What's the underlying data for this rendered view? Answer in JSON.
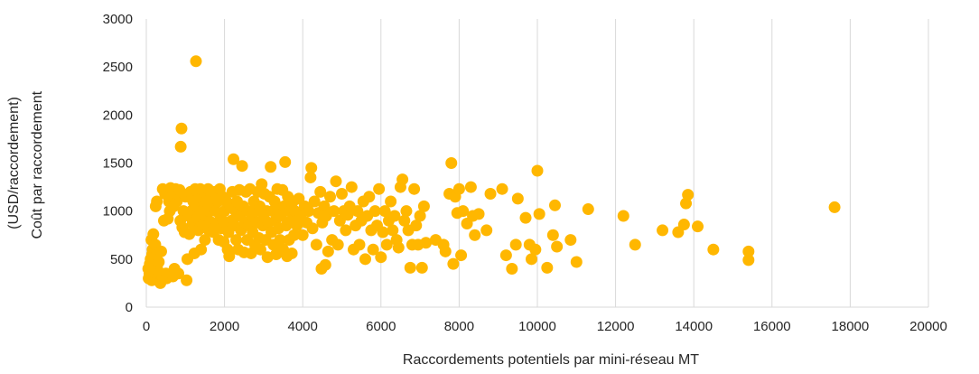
{
  "chart_data": {
    "type": "scatter",
    "title": "",
    "xlabel": "Raccordements potentiels par mini-réseau MT",
    "ylabel_line1": "Coût par raccordement",
    "ylabel_line2": "(USD/raccordement)",
    "xlim": [
      0,
      20000
    ],
    "ylim": [
      0,
      3000
    ],
    "x_ticks": [
      0,
      2000,
      4000,
      6000,
      8000,
      10000,
      12000,
      14000,
      16000,
      18000,
      20000
    ],
    "x_tick_labels": [
      "0",
      "2000",
      "4000",
      "6000",
      "8000",
      "10000",
      "12000",
      "14000",
      "16000",
      "18000",
      "20000"
    ],
    "y_ticks": [
      0,
      500,
      1000,
      1500,
      2000,
      2500,
      3000
    ],
    "y_tick_labels": [
      "0",
      "500",
      "1000",
      "1500",
      "2000",
      "2500",
      "3000"
    ],
    "grid": "vertical",
    "legend": "none",
    "marker_color": "#FFB700",
    "series": [
      {
        "points": [
          [
            50,
            400
          ],
          [
            60,
            300
          ],
          [
            80,
            350
          ],
          [
            90,
            450
          ],
          [
            100,
            380
          ],
          [
            110,
            500
          ],
          [
            120,
            320
          ],
          [
            130,
            700
          ],
          [
            140,
            280
          ],
          [
            150,
            550
          ],
          [
            160,
            600
          ],
          [
            170,
            420
          ],
          [
            180,
            760
          ],
          [
            190,
            330
          ],
          [
            200,
            480
          ],
          [
            220,
            360
          ],
          [
            230,
            650
          ],
          [
            240,
            1050
          ],
          [
            250,
            290
          ],
          [
            260,
            540
          ],
          [
            270,
            1100
          ],
          [
            280,
            400
          ],
          [
            300,
            310
          ],
          [
            320,
            470
          ],
          [
            340,
            350
          ],
          [
            360,
            250
          ],
          [
            380,
            580
          ],
          [
            400,
            330
          ],
          [
            420,
            1230
          ],
          [
            450,
            900
          ],
          [
            480,
            1180
          ],
          [
            500,
            350
          ],
          [
            520,
            300
          ],
          [
            550,
            920
          ],
          [
            580,
            1100
          ],
          [
            600,
            1000
          ],
          [
            620,
            1240
          ],
          [
            650,
            1150
          ],
          [
            680,
            320
          ],
          [
            700,
            1050
          ],
          [
            720,
            400
          ],
          [
            750,
            1230
          ],
          [
            780,
            1100
          ],
          [
            800,
            1180
          ],
          [
            820,
            350
          ],
          [
            850,
            1220
          ],
          [
            870,
            900
          ],
          [
            880,
            1670
          ],
          [
            900,
            1860
          ],
          [
            920,
            830
          ],
          [
            950,
            1000
          ],
          [
            980,
            780
          ],
          [
            1000,
            1150
          ],
          [
            1030,
            280
          ],
          [
            1050,
            500
          ],
          [
            1080,
            950
          ],
          [
            1100,
            760
          ],
          [
            1130,
            1200
          ],
          [
            1150,
            1000
          ],
          [
            1180,
            870
          ],
          [
            1200,
            1100
          ],
          [
            1230,
            560
          ],
          [
            1250,
            1230
          ],
          [
            1270,
            2560
          ],
          [
            1290,
            1050
          ],
          [
            1310,
            930
          ],
          [
            1330,
            800
          ],
          [
            1350,
            1150
          ],
          [
            1380,
            1230
          ],
          [
            1400,
            600
          ],
          [
            1420,
            1000
          ],
          [
            1450,
            850
          ],
          [
            1480,
            1200
          ],
          [
            1500,
            700
          ],
          [
            1520,
            1100
          ],
          [
            1550,
            950
          ],
          [
            1580,
            1230
          ],
          [
            1600,
            800
          ],
          [
            1620,
            1000
          ],
          [
            1650,
            1150
          ],
          [
            1680,
            880
          ],
          [
            1700,
            1050
          ],
          [
            1720,
            780
          ],
          [
            1750,
            1200
          ],
          [
            1780,
            1000
          ],
          [
            1800,
            850
          ],
          [
            1830,
            1100
          ],
          [
            1850,
            700
          ],
          [
            1880,
            1230
          ],
          [
            1900,
            950
          ],
          [
            1920,
            820
          ],
          [
            1950,
            1150
          ],
          [
            1980,
            680
          ],
          [
            2000,
            1000
          ],
          [
            2030,
            880
          ],
          [
            2050,
            1100
          ],
          [
            2080,
            600
          ],
          [
            2100,
            780
          ],
          [
            2120,
            530
          ],
          [
            2150,
            1050
          ],
          [
            2180,
            900
          ],
          [
            2200,
            1200
          ],
          [
            2230,
            1540
          ],
          [
            2250,
            850
          ],
          [
            2280,
            1000
          ],
          [
            2300,
            700
          ],
          [
            2320,
            1100
          ],
          [
            2350,
            600
          ],
          [
            2380,
            1220
          ],
          [
            2400,
            950
          ],
          [
            2420,
            800
          ],
          [
            2450,
            1470
          ],
          [
            2480,
            1050
          ],
          [
            2500,
            570
          ],
          [
            2520,
            880
          ],
          [
            2550,
            1200
          ],
          [
            2580,
            700
          ],
          [
            2600,
            1000
          ],
          [
            2620,
            850
          ],
          [
            2650,
            1230
          ],
          [
            2680,
            560
          ],
          [
            2700,
            950
          ],
          [
            2720,
            780
          ],
          [
            2750,
            1100
          ],
          [
            2780,
            650
          ],
          [
            2800,
            1000
          ],
          [
            2830,
            880
          ],
          [
            2850,
            1200
          ],
          [
            2880,
            720
          ],
          [
            2900,
            1050
          ],
          [
            2920,
            600
          ],
          [
            2950,
            1280
          ],
          [
            2980,
            850
          ],
          [
            3000,
            950
          ],
          [
            3020,
            1180
          ],
          [
            3050,
            700
          ],
          [
            3080,
            1000
          ],
          [
            3100,
            520
          ],
          [
            3120,
            880
          ],
          [
            3150,
            1150
          ],
          [
            3180,
            1460
          ],
          [
            3200,
            780
          ],
          [
            3230,
            1000
          ],
          [
            3250,
            650
          ],
          [
            3280,
            1100
          ],
          [
            3300,
            900
          ],
          [
            3320,
            550
          ],
          [
            3350,
            1230
          ],
          [
            3380,
            820
          ],
          [
            3400,
            1000
          ],
          [
            3420,
            700
          ],
          [
            3450,
            950
          ],
          [
            3480,
            1220
          ],
          [
            3500,
            600
          ],
          [
            3520,
            1050
          ],
          [
            3550,
            1510
          ],
          [
            3580,
            850
          ],
          [
            3600,
            530
          ],
          [
            3620,
            1150
          ],
          [
            3650,
            700
          ],
          [
            3680,
            1000
          ],
          [
            3700,
            900
          ],
          [
            3720,
            560
          ],
          [
            3750,
            1100
          ],
          [
            3780,
            750
          ],
          [
            3800,
            1000
          ],
          [
            3850,
            850
          ],
          [
            3900,
            1130
          ],
          [
            3950,
            950
          ],
          [
            4000,
            750
          ],
          [
            4050,
            1050
          ],
          [
            4100,
            880
          ],
          [
            4150,
            1000
          ],
          [
            4200,
            1350
          ],
          [
            4220,
            1450
          ],
          [
            4250,
            820
          ],
          [
            4300,
            1100
          ],
          [
            4350,
            650
          ],
          [
            4400,
            980
          ],
          [
            4450,
            1200
          ],
          [
            4480,
            400
          ],
          [
            4500,
            880
          ],
          [
            4550,
            1050
          ],
          [
            4580,
            440
          ],
          [
            4600,
            950
          ],
          [
            4650,
            580
          ],
          [
            4700,
            1150
          ],
          [
            4750,
            700
          ],
          [
            4800,
            1000
          ],
          [
            4850,
            1310
          ],
          [
            4900,
            650
          ],
          [
            4950,
            900
          ],
          [
            5000,
            1180
          ],
          [
            5050,
            1000
          ],
          [
            5100,
            800
          ],
          [
            5150,
            960
          ],
          [
            5200,
            1050
          ],
          [
            5250,
            1250
          ],
          [
            5300,
            600
          ],
          [
            5350,
            850
          ],
          [
            5400,
            1000
          ],
          [
            5450,
            650
          ],
          [
            5500,
            900
          ],
          [
            5550,
            1100
          ],
          [
            5600,
            500
          ],
          [
            5650,
            950
          ],
          [
            5700,
            1150
          ],
          [
            5750,
            800
          ],
          [
            5800,
            600
          ],
          [
            5850,
            1000
          ],
          [
            5900,
            850
          ],
          [
            5950,
            1230
          ],
          [
            6000,
            520
          ],
          [
            6050,
            780
          ],
          [
            6100,
            1000
          ],
          [
            6150,
            650
          ],
          [
            6200,
            900
          ],
          [
            6250,
            1100
          ],
          [
            6300,
            800
          ],
          [
            6350,
            950
          ],
          [
            6400,
            700
          ],
          [
            6450,
            620
          ],
          [
            6500,
            1250
          ],
          [
            6550,
            1330
          ],
          [
            6600,
            900
          ],
          [
            6650,
            1000
          ],
          [
            6700,
            800
          ],
          [
            6750,
            410
          ],
          [
            6800,
            650
          ],
          [
            6850,
            1230
          ],
          [
            6900,
            850
          ],
          [
            6950,
            650
          ],
          [
            7000,
            950
          ],
          [
            7050,
            410
          ],
          [
            7100,
            1050
          ],
          [
            7150,
            670
          ],
          [
            7400,
            700
          ],
          [
            7600,
            650
          ],
          [
            7650,
            580
          ],
          [
            7750,
            1180
          ],
          [
            7800,
            1500
          ],
          [
            7850,
            450
          ],
          [
            7900,
            1150
          ],
          [
            7950,
            980
          ],
          [
            8000,
            1230
          ],
          [
            8050,
            540
          ],
          [
            8100,
            1000
          ],
          [
            8200,
            870
          ],
          [
            8300,
            1250
          ],
          [
            8350,
            950
          ],
          [
            8400,
            750
          ],
          [
            8500,
            970
          ],
          [
            8700,
            800
          ],
          [
            8800,
            1180
          ],
          [
            9100,
            1230
          ],
          [
            9200,
            540
          ],
          [
            9350,
            400
          ],
          [
            9450,
            650
          ],
          [
            9500,
            1130
          ],
          [
            9700,
            930
          ],
          [
            9800,
            650
          ],
          [
            9850,
            500
          ],
          [
            9950,
            600
          ],
          [
            10000,
            1420
          ],
          [
            10050,
            970
          ],
          [
            10250,
            410
          ],
          [
            10400,
            750
          ],
          [
            10450,
            1060
          ],
          [
            10500,
            630
          ],
          [
            10850,
            700
          ],
          [
            11000,
            470
          ],
          [
            11300,
            1020
          ],
          [
            12200,
            950
          ],
          [
            12500,
            650
          ],
          [
            13200,
            800
          ],
          [
            13600,
            780
          ],
          [
            13750,
            860
          ],
          [
            13800,
            1080
          ],
          [
            13850,
            1170
          ],
          [
            14100,
            840
          ],
          [
            14500,
            600
          ],
          [
            15400,
            580
          ],
          [
            15400,
            490
          ],
          [
            17600,
            1040
          ]
        ]
      }
    ]
  }
}
